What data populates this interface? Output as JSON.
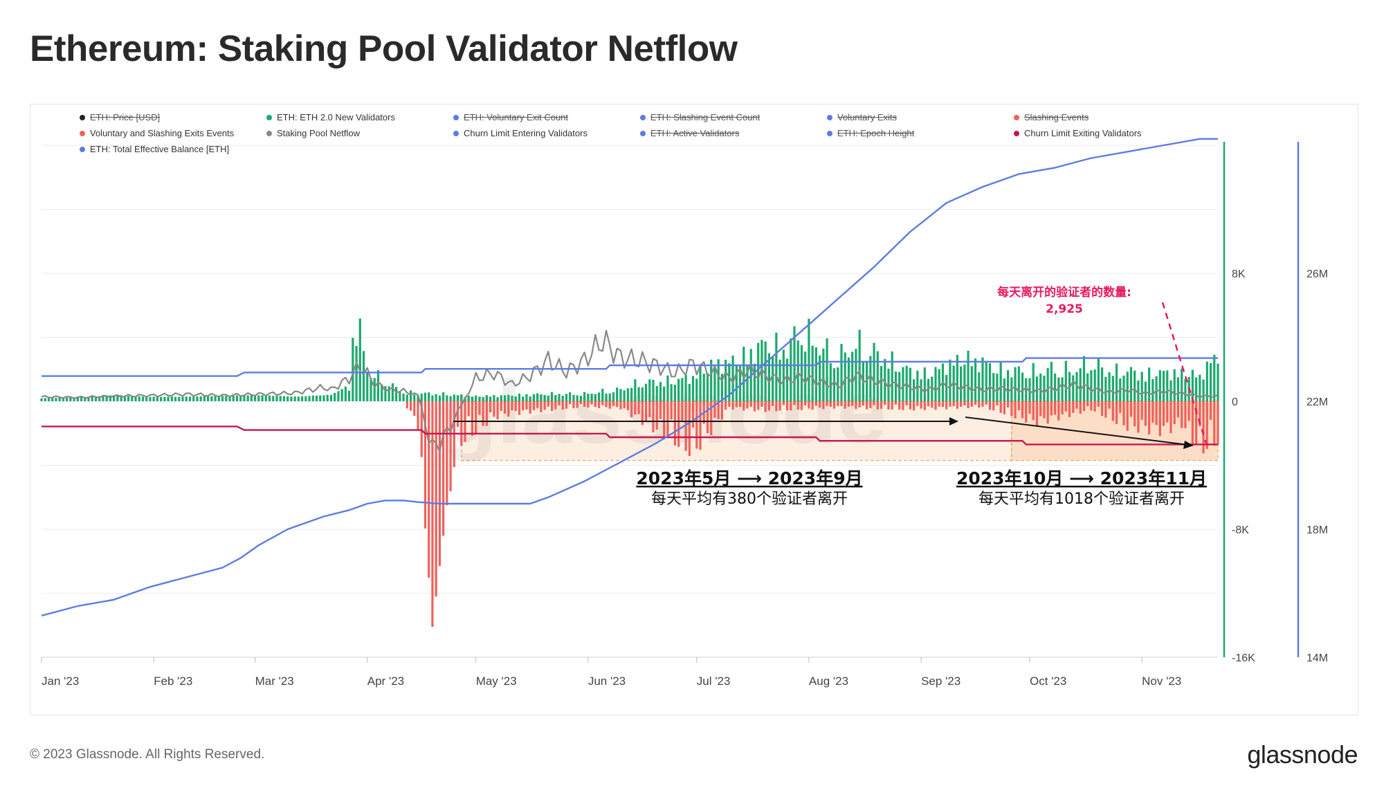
{
  "title": "Ethereum: Staking Pool Validator Netflow",
  "footer": "© 2023 Glassnode. All Rights Reserved.",
  "brand": "glassnode",
  "watermark": "glassnode",
  "legend": [
    {
      "label": "ETH: Price [USD]",
      "color": "#222222",
      "active": false
    },
    {
      "label": "ETH: ETH 2.0 New Validators",
      "color": "#1aaa6c",
      "active": true
    },
    {
      "label": "ETH: Voluntary Exit Count",
      "color": "#5e7be0",
      "active": false
    },
    {
      "label": "ETH: Slashing Event Count",
      "color": "#5e7be0",
      "active": false
    },
    {
      "label": "Voluntary Exits",
      "color": "#5e7be0",
      "active": false
    },
    {
      "label": "Slashing Events",
      "color": "#f0605a",
      "active": false
    },
    {
      "label": "Voluntary and Slashing Exits Events",
      "color": "#f0605a",
      "active": true
    },
    {
      "label": "Staking Pool Netflow",
      "color": "#888888",
      "active": true
    },
    {
      "label": "Churn Limit Entering Validators",
      "color": "#5e7be0",
      "active": true
    },
    {
      "label": "ETH: Active Validators",
      "color": "#5e7be0",
      "active": false
    },
    {
      "label": "ETH: Epoch Height",
      "color": "#5e7be0",
      "active": false
    },
    {
      "label": "Churn Limit Exiting Validators",
      "color": "#c4174f",
      "active": true
    },
    {
      "label": "ETH: Total Effective Balance [ETH]",
      "color": "#5e7be0",
      "active": true
    }
  ],
  "annotations": {
    "period1_title": "2023年5月 ⟶ 2023年9月",
    "period1_sub": "每天平均有380个验证者离开",
    "period2_title": "2023年10月 ⟶ 2023年11月",
    "period2_sub": "每天平均有1018个验证者离开",
    "callout_line1": "每天离开的验证者的数量:",
    "callout_line2": "2,925"
  },
  "chart_data": {
    "type": "bar",
    "title": "Ethereum: Staking Pool Validator Netflow",
    "x_labels": [
      "Jan '23",
      "Feb '23",
      "Mar '23",
      "Apr '23",
      "May '23",
      "Jun '23",
      "Jul '23",
      "Aug '23",
      "Sep '23",
      "Oct '23",
      "Nov '23"
    ],
    "x_range_days": [
      0,
      325
    ],
    "y_left": {
      "ticks": [
        "8K",
        "0",
        "-8K",
        "-16K"
      ],
      "tick_values": [
        8000,
        0,
        -8000,
        -16000
      ],
      "range": [
        -16000,
        16000
      ]
    },
    "y_right": {
      "ticks": [
        "26M",
        "22M",
        "18M",
        "14M"
      ],
      "tick_values": [
        26000000,
        22000000,
        18000000,
        14000000
      ],
      "range": [
        14000000,
        30000000
      ]
    },
    "series": [
      {
        "name": "ETH: ETH 2.0 New Validators",
        "type": "bar",
        "color": "#1aaa6c",
        "points": [
          [
            0,
            200
          ],
          [
            10,
            250
          ],
          [
            20,
            400
          ],
          [
            30,
            280
          ],
          [
            40,
            300
          ],
          [
            50,
            350
          ],
          [
            60,
            400
          ],
          [
            70,
            300
          ],
          [
            80,
            420
          ],
          [
            85,
            1050
          ],
          [
            86,
            6200
          ],
          [
            88,
            5500
          ],
          [
            90,
            2500
          ],
          [
            100,
            700
          ],
          [
            110,
            600
          ],
          [
            120,
            400
          ],
          [
            130,
            500
          ],
          [
            140,
            600
          ],
          [
            150,
            600
          ],
          [
            155,
            800
          ],
          [
            160,
            950
          ],
          [
            165,
            1500
          ],
          [
            170,
            1600
          ],
          [
            175,
            1700
          ],
          [
            180,
            2000
          ],
          [
            185,
            3000
          ],
          [
            190,
            3200
          ],
          [
            195,
            3800
          ],
          [
            200,
            4800
          ],
          [
            205,
            4200
          ],
          [
            210,
            5800
          ],
          [
            215,
            4500
          ],
          [
            220,
            3500
          ],
          [
            225,
            4700
          ],
          [
            230,
            4000
          ],
          [
            235,
            3200
          ],
          [
            240,
            2500
          ],
          [
            245,
            2200
          ],
          [
            250,
            3000
          ],
          [
            255,
            3500
          ],
          [
            260,
            3200
          ],
          [
            265,
            2600
          ],
          [
            270,
            2500
          ],
          [
            275,
            2400
          ],
          [
            280,
            2700
          ],
          [
            285,
            2500
          ],
          [
            290,
            3200
          ],
          [
            295,
            2400
          ],
          [
            300,
            2500
          ],
          [
            305,
            2200
          ],
          [
            310,
            2400
          ],
          [
            315,
            2300
          ],
          [
            320,
            2100
          ],
          [
            325,
            3900
          ]
        ]
      },
      {
        "name": "Voluntary and Slashing Exits Events",
        "type": "bar",
        "color": "#f0605a",
        "points": [
          [
            0,
            0
          ],
          [
            100,
            0
          ],
          [
            104,
            -1800
          ],
          [
            108,
            -14100
          ],
          [
            112,
            -6500
          ],
          [
            116,
            -3000
          ],
          [
            125,
            -1200
          ],
          [
            130,
            -900
          ],
          [
            150,
            -400
          ],
          [
            160,
            -500
          ],
          [
            180,
            -3800
          ],
          [
            190,
            -500
          ],
          [
            200,
            -700
          ],
          [
            220,
            -450
          ],
          [
            240,
            -600
          ],
          [
            260,
            -400
          ],
          [
            275,
            -1600
          ],
          [
            290,
            -600
          ],
          [
            300,
            -1900
          ],
          [
            310,
            -2200
          ],
          [
            315,
            -1700
          ],
          [
            320,
            -3600
          ],
          [
            325,
            -2925
          ]
        ]
      },
      {
        "name": "Staking Pool Netflow",
        "type": "line",
        "color": "#888888",
        "points": [
          [
            0,
            350
          ],
          [
            10,
            300
          ],
          [
            20,
            400
          ],
          [
            30,
            450
          ],
          [
            40,
            550
          ],
          [
            50,
            450
          ],
          [
            60,
            550
          ],
          [
            70,
            650
          ],
          [
            78,
            1100
          ],
          [
            80,
            900
          ],
          [
            85,
            1800
          ],
          [
            88,
            2800
          ],
          [
            92,
            1400
          ],
          [
            96,
            900
          ],
          [
            100,
            800
          ],
          [
            104,
            450
          ],
          [
            108,
            -3800
          ],
          [
            112,
            -2500
          ],
          [
            116,
            -300
          ],
          [
            120,
            1800
          ],
          [
            125,
            2200
          ],
          [
            130,
            1300
          ],
          [
            135,
            2000
          ],
          [
            140,
            3200
          ],
          [
            145,
            2300
          ],
          [
            150,
            3200
          ],
          [
            155,
            4800
          ],
          [
            160,
            3400
          ],
          [
            165,
            3200
          ],
          [
            170,
            2800
          ],
          [
            175,
            2200
          ],
          [
            180,
            2900
          ],
          [
            185,
            2300
          ],
          [
            190,
            1800
          ],
          [
            195,
            2400
          ],
          [
            200,
            2000
          ],
          [
            205,
            1600
          ],
          [
            210,
            1900
          ],
          [
            215,
            1500
          ],
          [
            220,
            1200
          ],
          [
            225,
            2000
          ],
          [
            230,
            1600
          ],
          [
            235,
            1300
          ],
          [
            240,
            1100
          ],
          [
            245,
            900
          ],
          [
            250,
            1300
          ],
          [
            255,
            1100
          ],
          [
            260,
            900
          ],
          [
            265,
            1000
          ],
          [
            270,
            900
          ],
          [
            275,
            800
          ],
          [
            280,
            1000
          ],
          [
            285,
            1300
          ],
          [
            290,
            1000
          ],
          [
            295,
            700
          ],
          [
            300,
            900
          ],
          [
            305,
            600
          ],
          [
            310,
            800
          ],
          [
            315,
            600
          ],
          [
            320,
            400
          ],
          [
            325,
            400
          ]
        ]
      },
      {
        "name": "Churn Limit Entering Validators",
        "type": "line",
        "color": "#5e7be0",
        "points": [
          [
            0,
            1575
          ],
          [
            54,
            1575
          ],
          [
            56,
            1800
          ],
          [
            105,
            1800
          ],
          [
            106,
            2025
          ],
          [
            156,
            2025
          ],
          [
            157,
            2250
          ],
          [
            214,
            2250
          ],
          [
            215,
            2475
          ],
          [
            271,
            2475
          ],
          [
            272,
            2700
          ],
          [
            325,
            2700
          ]
        ]
      },
      {
        "name": "Churn Limit Exiting Validators",
        "type": "line",
        "color": "#c4174f",
        "points": [
          [
            0,
            -1575
          ],
          [
            54,
            -1575
          ],
          [
            56,
            -1800
          ],
          [
            105,
            -1800
          ],
          [
            106,
            -2025
          ],
          [
            156,
            -2025
          ],
          [
            157,
            -2250
          ],
          [
            214,
            -2250
          ],
          [
            215,
            -2475
          ],
          [
            271,
            -2475
          ],
          [
            272,
            -2700
          ],
          [
            325,
            -2700
          ]
        ]
      },
      {
        "name": "ETH: Total Effective Balance [ETH]",
        "type": "line",
        "axis": "right",
        "color": "#5e7be0",
        "points": [
          [
            0,
            15300000
          ],
          [
            10,
            15600000
          ],
          [
            20,
            15800000
          ],
          [
            30,
            16200000
          ],
          [
            40,
            16500000
          ],
          [
            50,
            16800000
          ],
          [
            55,
            17100000
          ],
          [
            60,
            17500000
          ],
          [
            68,
            18000000
          ],
          [
            78,
            18400000
          ],
          [
            85,
            18600000
          ],
          [
            90,
            18800000
          ],
          [
            95,
            18900000
          ],
          [
            100,
            18900000
          ],
          [
            104,
            18850000
          ],
          [
            110,
            18800000
          ],
          [
            125,
            18800000
          ],
          [
            135,
            18800000
          ],
          [
            140,
            19000000
          ],
          [
            150,
            19500000
          ],
          [
            160,
            20100000
          ],
          [
            170,
            20700000
          ],
          [
            180,
            21400000
          ],
          [
            190,
            22200000
          ],
          [
            200,
            23200000
          ],
          [
            210,
            24200000
          ],
          [
            220,
            25200000
          ],
          [
            230,
            26200000
          ],
          [
            240,
            27300000
          ],
          [
            250,
            28200000
          ],
          [
            260,
            28700000
          ],
          [
            270,
            29100000
          ],
          [
            280,
            29300000
          ],
          [
            290,
            29600000
          ],
          [
            300,
            29800000
          ],
          [
            310,
            30000000
          ],
          [
            320,
            30200000
          ],
          [
            325,
            30200000
          ]
        ]
      }
    ]
  }
}
